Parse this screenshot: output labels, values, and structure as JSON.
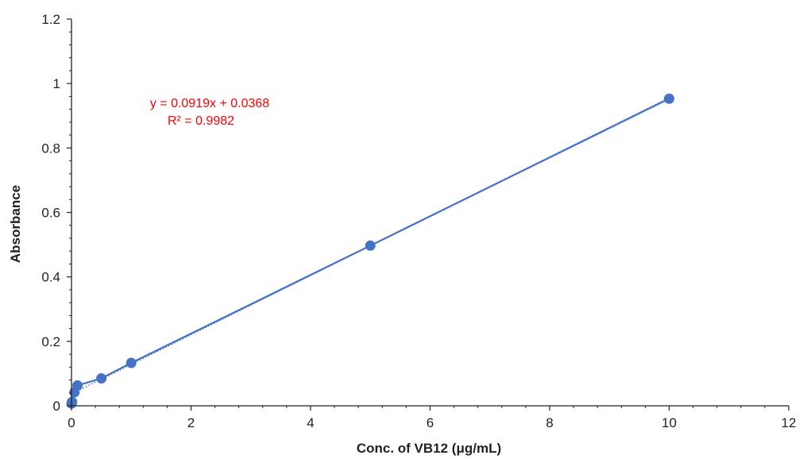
{
  "chart_data": {
    "type": "scatter",
    "xlabel": "Conc. of VB12 (μg/mL)",
    "ylabel": "Absorbance",
    "xlim": [
      0,
      12
    ],
    "ylim": [
      0,
      1.2
    ],
    "x_ticks": [
      0,
      2,
      4,
      6,
      8,
      10,
      12
    ],
    "y_ticks": [
      0,
      0.2,
      0.4,
      0.6,
      0.8,
      1,
      1.2
    ],
    "x_tick_labels": [
      "0",
      "2",
      "4",
      "6",
      "8",
      "10",
      "12"
    ],
    "y_tick_labels": [
      "0",
      "0.2",
      "0.4",
      "0.6",
      "0.8",
      "1",
      "1.2"
    ],
    "grid": false,
    "series": [
      {
        "x": [
          0,
          0.01,
          0.05,
          0.1,
          0.5,
          1,
          5,
          10
        ],
        "y": [
          0.007,
          0.012,
          0.042,
          0.063,
          0.085,
          0.133,
          0.497,
          0.953
        ],
        "color": "#4472C4"
      }
    ],
    "trendline": {
      "slope": 0.0919,
      "intercept": 0.0368,
      "color": "#4472C4",
      "style": "dotted"
    },
    "annotations": {
      "equation": "y = 0.0919x + 0.0368",
      "r_squared": "R² = 0.9982",
      "color": "#FF0000"
    }
  }
}
